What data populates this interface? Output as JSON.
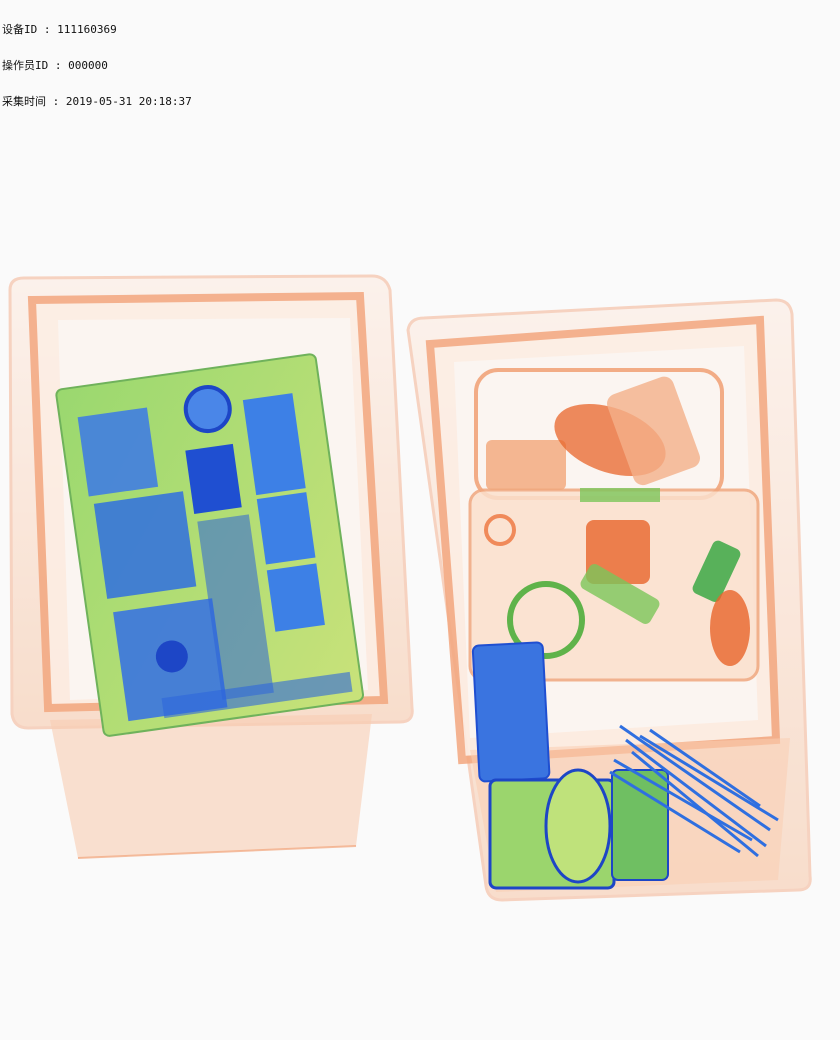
{
  "overlay": {
    "device_id_label": "设备ID : 111160369",
    "operator_id_label": "操作员ID : 000000",
    "capture_time_label": "采集时间 : 2019-05-31 20:18:37"
  },
  "palette": {
    "background": "#fafafa",
    "tray_organic": "#f08a5a",
    "tray_light": "#fbd9c4",
    "metal_blue": "#2f6fe0",
    "mixed_green": "#8fd16a",
    "orange_dense": "#e8642a"
  },
  "scene": {
    "icons": [
      "xray-tray-left",
      "xray-tray-right",
      "circuit-board",
      "bottles",
      "cable-bundle",
      "phone"
    ]
  }
}
